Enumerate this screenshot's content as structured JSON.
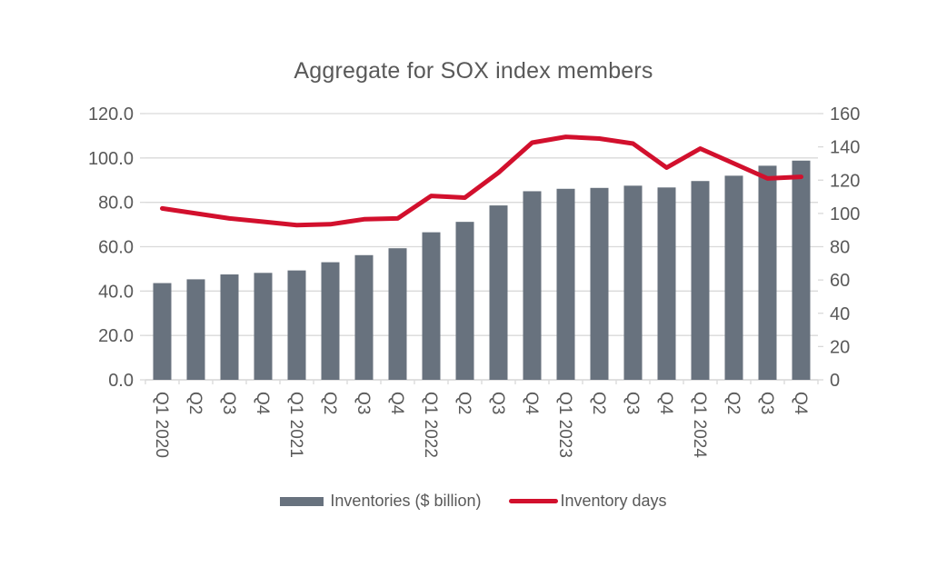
{
  "chart_data": {
    "type": "combo",
    "title": "Aggregate for SOX index members",
    "categories": [
      "Q1 2020",
      "Q2",
      "Q3",
      "Q4",
      "Q1 2021",
      "Q2",
      "Q3",
      "Q4",
      "Q1 2022",
      "Q2",
      "Q3",
      "Q4",
      "Q1 2023",
      "Q2",
      "Q3",
      "Q4",
      "Q1 2024",
      "Q2",
      "Q3",
      "Q4"
    ],
    "series": [
      {
        "name": "Inventories ($ billion)",
        "type": "bar",
        "axis": "left",
        "color": "#68727e",
        "values": [
          43.6,
          45.3,
          47.5,
          48.2,
          49.3,
          53.0,
          56.2,
          59.3,
          66.5,
          71.2,
          78.6,
          85.0,
          86.1,
          86.5,
          87.5,
          86.7,
          89.6,
          92.0,
          96.5,
          98.8
        ]
      },
      {
        "name": "Inventory days",
        "type": "line",
        "axis": "right",
        "color": "#d2102d",
        "values": [
          103,
          100,
          97,
          95,
          93,
          93.5,
          96.5,
          97,
          110.5,
          109.5,
          124.5,
          142.5,
          146,
          145,
          142,
          127.5,
          139,
          130,
          121,
          122
        ]
      }
    ],
    "axes": {
      "left": {
        "min": 0,
        "max": 120,
        "step": 20,
        "ticks": [
          "0.0",
          "20.0",
          "40.0",
          "60.0",
          "80.0",
          "100.0",
          "120.0"
        ]
      },
      "right": {
        "min": 0,
        "max": 160,
        "step": 20,
        "ticks": [
          "0",
          "20",
          "40",
          "60",
          "80",
          "100",
          "120",
          "140",
          "160"
        ]
      }
    },
    "grid": true,
    "legend_position": "bottom",
    "colors": {
      "text": "#595959",
      "grid": "#d9d9d9"
    }
  }
}
